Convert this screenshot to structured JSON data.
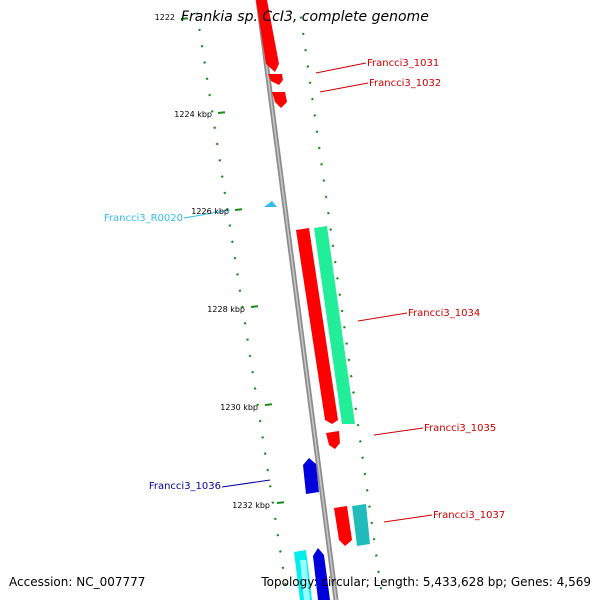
{
  "title": "Frankia sp. CcI3, complete genome",
  "footer": {
    "accession": "Accession: NC_007777",
    "summary": "Topology: circular; Length: 5,433,628 bp; Genes: 4,569"
  },
  "colors": {
    "backbone": "#8c8c8c",
    "ticks": "#1a8a1a",
    "forward_gene": "#ff0000",
    "reverse_gene": "#0000cc",
    "rna": "#33bbee",
    "label_red": "#cc0000",
    "label_blue": "#000099",
    "label_cyan": "#33bbee"
  },
  "scale_labels": [
    "1222",
    "1224 kbp",
    "1226 kbp",
    "1228 kbp",
    "1230 kbp",
    "1232 kbp"
  ],
  "features": [
    {
      "id": "Francci3_1031",
      "color": "red"
    },
    {
      "id": "Francci3_1032",
      "color": "red"
    },
    {
      "id": "Francci3_R0020",
      "color": "cyan"
    },
    {
      "id": "Francci3_1034",
      "color": "red"
    },
    {
      "id": "Francci3_1035",
      "color": "red"
    },
    {
      "id": "Francci3_1036",
      "color": "blue"
    },
    {
      "id": "Francci3_1037",
      "color": "red"
    }
  ]
}
